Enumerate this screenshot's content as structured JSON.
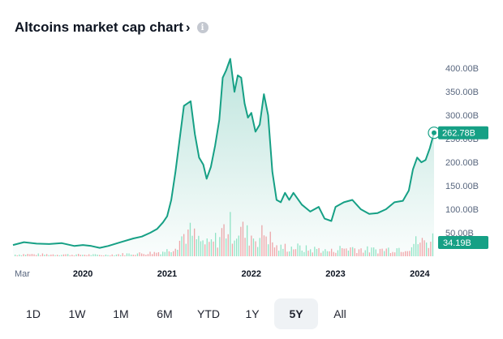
{
  "header": {
    "title": "Altcoins market cap chart",
    "chevron": "›",
    "info_icon": "i"
  },
  "chart_data": {
    "type": "area",
    "title": "Altcoins market cap chart",
    "y_ticks": [
      "400.00B",
      "350.00B",
      "300.00B",
      "250.00B",
      "200.00B",
      "150.00B",
      "100.00B",
      "50.00B"
    ],
    "x_ticks": [
      "Mar",
      "2020",
      "2021",
      "2022",
      "2023",
      "2024"
    ],
    "ylim": [
      0,
      440
    ],
    "x_range": [
      2019.17,
      2024.17
    ],
    "current_value_label": "262.78B",
    "current_volume_label": "34.19B",
    "line_color": "#16a085",
    "series": [
      {
        "values_unit": "B USD",
        "x": [
          2019.17,
          2019.3,
          2019.45,
          2019.6,
          2019.75,
          2019.9,
          2020.0,
          2020.1,
          2020.2,
          2020.3,
          2020.45,
          2020.6,
          2020.7,
          2020.8,
          2020.88,
          2020.95,
          2021.0,
          2021.05,
          2021.1,
          2021.15,
          2021.2,
          2021.28,
          2021.33,
          2021.38,
          2021.43,
          2021.47,
          2021.52,
          2021.57,
          2021.62,
          2021.66,
          2021.7,
          2021.75,
          2021.8,
          2021.84,
          2021.88,
          2021.92,
          2021.96,
          2022.0,
          2022.05,
          2022.1,
          2022.15,
          2022.2,
          2022.25,
          2022.3,
          2022.35,
          2022.4,
          2022.45,
          2022.5,
          2022.6,
          2022.7,
          2022.8,
          2022.87,
          2022.95,
          2023.0,
          2023.1,
          2023.2,
          2023.3,
          2023.4,
          2023.5,
          2023.6,
          2023.7,
          2023.8,
          2023.87,
          2023.92,
          2023.97,
          2024.02,
          2024.07,
          2024.12,
          2024.17
        ],
        "values": [
          24,
          30,
          27,
          26,
          28,
          22,
          24,
          22,
          18,
          22,
          30,
          38,
          42,
          50,
          58,
          72,
          85,
          120,
          180,
          250,
          320,
          330,
          260,
          210,
          195,
          165,
          190,
          235,
          290,
          380,
          395,
          420,
          350,
          385,
          380,
          325,
          295,
          305,
          265,
          280,
          345,
          300,
          180,
          120,
          115,
          135,
          120,
          135,
          110,
          95,
          105,
          80,
          75,
          105,
          115,
          120,
          100,
          90,
          92,
          100,
          115,
          118,
          140,
          185,
          210,
          200,
          205,
          230,
          262.78
        ]
      }
    ]
  },
  "tabs": [
    {
      "label": "1D",
      "active": false
    },
    {
      "label": "1W",
      "active": false
    },
    {
      "label": "1M",
      "active": false
    },
    {
      "label": "6M",
      "active": false
    },
    {
      "label": "YTD",
      "active": false
    },
    {
      "label": "1Y",
      "active": false
    },
    {
      "label": "5Y",
      "active": true
    },
    {
      "label": "All",
      "active": false
    }
  ]
}
